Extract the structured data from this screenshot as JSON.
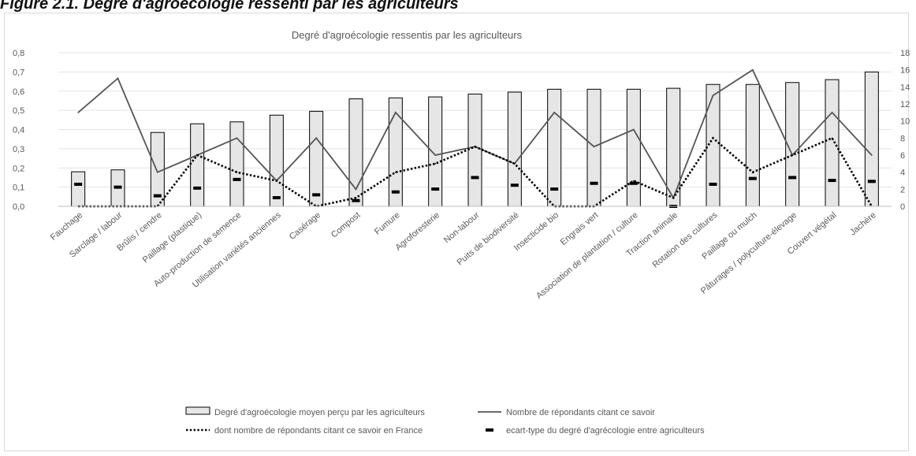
{
  "page": {
    "caption": "Figure 2.1. Degré d'agroécologie ressenti par les agriculteurs"
  },
  "chart_data": {
    "type": "bar",
    "title": "Degré d'agroécologie ressentis par les agriculteurs",
    "categories": [
      "Fauchage",
      "Sarclage / labour",
      "Brûlis / cendre",
      "Paillage (plastique)",
      "Auto-production de semence",
      "Utilisation variétés anciennes",
      "Casérage",
      "Compost",
      "Fumure",
      "Agroforesterie",
      "Non-labour",
      "Puits de biodiversité",
      "Insecticide bio",
      "Engrais vert",
      "Association de plantation / culture",
      "Traction animale",
      "Rotation des cultures",
      "Paillage ou mulch",
      "Pâturages / polyculture-élevage",
      "Couvert végétal",
      "Jachère"
    ],
    "y_left": {
      "ticks": [
        "0,0",
        "0,1",
        "0,2",
        "0,3",
        "0,4",
        "0,5",
        "0,6",
        "0,7",
        "0,8"
      ],
      "range": [
        0,
        0.8
      ]
    },
    "y_right": {
      "ticks": [
        "0",
        "2",
        "4",
        "6",
        "8",
        "10",
        "12",
        "14",
        "16",
        "18"
      ],
      "range": [
        0,
        18
      ]
    },
    "grid": true,
    "legend_position": "bottom",
    "series": [
      {
        "name": "Degré d'agroécologie moyen perçu par les agriculteurs",
        "kind": "bar",
        "axis": "left",
        "values": [
          0.18,
          0.19,
          0.385,
          0.43,
          0.44,
          0.475,
          0.495,
          0.56,
          0.565,
          0.57,
          0.585,
          0.595,
          0.61,
          0.61,
          0.61,
          0.615,
          0.635,
          0.635,
          0.645,
          0.66,
          0.7
        ]
      },
      {
        "name": "Nombre de répondants citant ce savoir",
        "kind": "line",
        "axis": "right",
        "values": [
          11,
          15,
          4,
          6,
          8,
          3,
          8,
          2,
          11,
          6,
          7,
          5,
          11,
          7,
          9,
          1,
          13,
          16,
          6,
          11,
          6
        ]
      },
      {
        "name": "dont nombre de répondants citant ce savoir en France",
        "kind": "dotted-line",
        "axis": "right",
        "values": [
          0,
          0,
          0,
          6,
          4,
          3,
          0,
          1,
          4,
          5,
          7,
          5,
          0,
          0,
          3,
          1,
          8,
          4,
          6,
          8,
          0
        ]
      },
      {
        "name": "ecart-type du degré d'agrécologie entre agriculteurs",
        "kind": "marker",
        "axis": "left",
        "values": [
          0.115,
          0.1,
          0.055,
          0.095,
          0.14,
          0.045,
          0.06,
          0.03,
          0.075,
          0.09,
          0.15,
          0.11,
          0.09,
          0.12,
          0.12,
          0.0,
          0.115,
          0.145,
          0.15,
          0.135,
          0.13
        ]
      }
    ],
    "colors": {
      "bar_fill": "#e6e6e6",
      "bar_stroke": "#000000",
      "line": "#555555",
      "dotted": "#000000",
      "marker": "#000000",
      "grid": "#e3e3e3",
      "text": "#595959"
    }
  }
}
